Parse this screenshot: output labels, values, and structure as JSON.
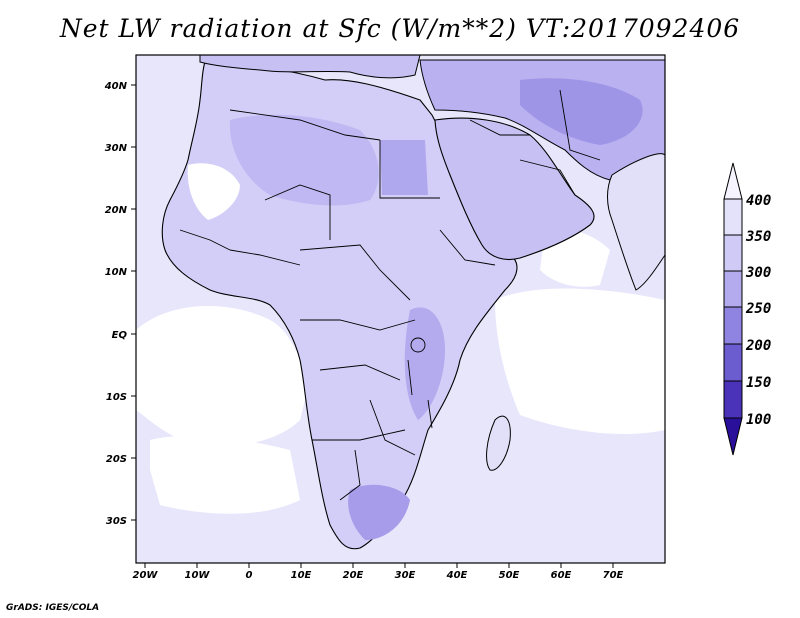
{
  "title": "Net LW radiation at Sfc (W/m**2) VT:2017092406",
  "credit": "GrADS: IGES/COLA",
  "map": {
    "lon_labels": [
      "20W",
      "10W",
      "0",
      "10E",
      "20E",
      "30E",
      "40E",
      "50E",
      "60E",
      "70E"
    ],
    "lat_labels": [
      "40N",
      "30N",
      "20N",
      "10N",
      "EQ",
      "10S",
      "20S",
      "30S"
    ]
  },
  "colorbar": {
    "labels": [
      "400",
      "350",
      "300",
      "250",
      "200",
      "150",
      "100"
    ],
    "colors": [
      "#f5f4ff",
      "#e4e2fb",
      "#cfcbf6",
      "#b3abee",
      "#8f84e2",
      "#6b5ccf",
      "#4a33b8",
      "#2a0f9a",
      "#1a0070"
    ]
  },
  "fill_colors": {
    "ocean_high": "#ffffff",
    "ocean_mid": "#e8e6fb",
    "land_light": "#ddd9f8",
    "land_mid": "#c6c0f3",
    "land_dark": "#a9a0ec",
    "land_darkest": "#8c80e0"
  }
}
